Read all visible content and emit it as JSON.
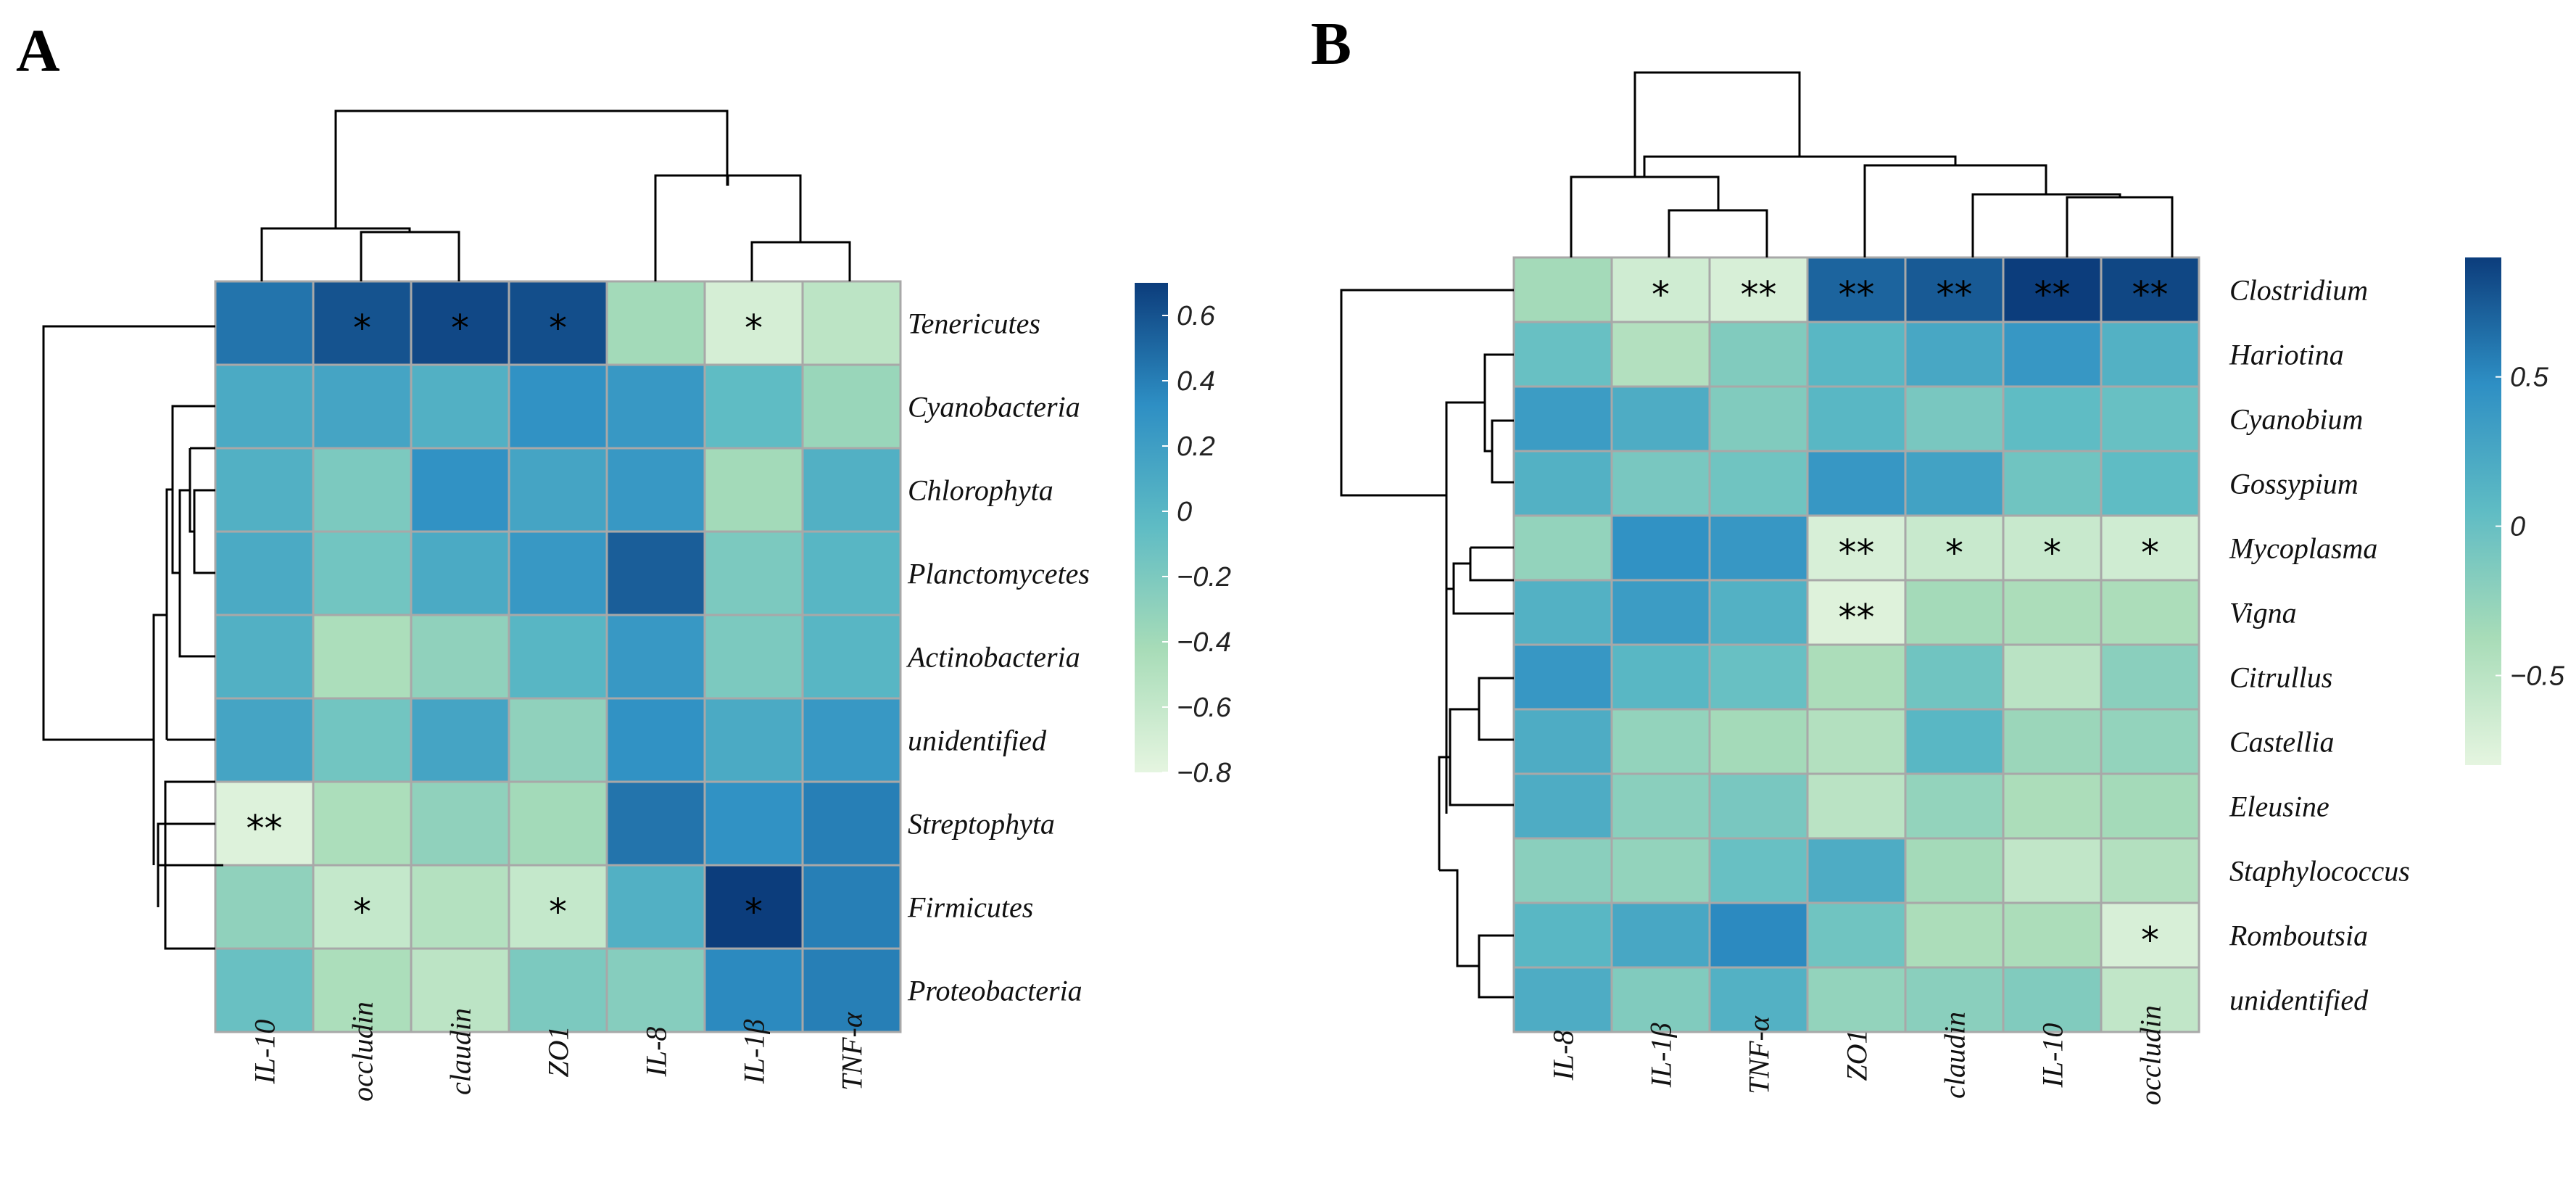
{
  "chart_data": [
    {
      "type": "heatmap",
      "panel": "A",
      "columns": [
        "IL-10",
        "occludin",
        "claudin",
        "ZO1",
        "IL-8",
        "IL-1β",
        "TNF-α"
      ],
      "rows": [
        "Tenericutes",
        "Cyanobacteria",
        "Chlorophyta",
        "Planctomycetes",
        "Actinobacteria",
        "unidentified",
        "Streptophyta",
        "Firmicutes",
        "Proteobacteria"
      ],
      "values": [
        [
          0.45,
          0.6,
          0.65,
          0.62,
          -0.4,
          -0.7,
          -0.55
        ],
        [
          0.1,
          0.15,
          0.05,
          0.3,
          0.25,
          -0.05,
          -0.35
        ],
        [
          0.05,
          -0.2,
          0.3,
          0.15,
          0.25,
          -0.4,
          0.05
        ],
        [
          0.1,
          -0.15,
          0.1,
          0.25,
          0.55,
          -0.2,
          0.0
        ],
        [
          0.05,
          -0.45,
          -0.3,
          0.0,
          0.25,
          -0.2,
          0.0
        ],
        [
          0.15,
          -0.15,
          0.15,
          -0.3,
          0.3,
          0.1,
          0.25
        ],
        [
          -0.75,
          -0.45,
          -0.3,
          -0.4,
          0.45,
          0.3,
          0.4
        ],
        [
          -0.3,
          -0.6,
          -0.5,
          -0.6,
          0.05,
          0.75,
          0.4
        ],
        [
          -0.1,
          -0.45,
          -0.55,
          -0.2,
          -0.25,
          0.35,
          0.4
        ]
      ],
      "significance": [
        [
          "",
          "*",
          "*",
          "*",
          "",
          "*",
          ""
        ],
        [
          "",
          "",
          "",
          "",
          "",
          "",
          ""
        ],
        [
          "",
          "",
          "",
          "",
          "",
          "",
          ""
        ],
        [
          "",
          "",
          "",
          "",
          "",
          "",
          ""
        ],
        [
          "",
          "",
          "",
          "",
          "",
          "",
          ""
        ],
        [
          "",
          "",
          "",
          "",
          "",
          "",
          ""
        ],
        [
          "**",
          "",
          "",
          "",
          "",
          "",
          ""
        ],
        [
          "",
          "*",
          "",
          "*",
          "",
          "*",
          ""
        ],
        [
          "",
          "",
          "",
          "",
          "",
          "",
          ""
        ]
      ],
      "colorbar": {
        "min": -0.8,
        "max": 0.7,
        "ticks": [
          0.6,
          0.4,
          0.2,
          0,
          -0.2,
          -0.4,
          -0.6,
          -0.8
        ],
        "tick_labels": [
          "0.6",
          "0.4",
          "0.2",
          "0",
          "−0.2",
          "−0.4",
          "−0.6",
          "−0.8"
        ]
      }
    },
    {
      "type": "heatmap",
      "panel": "B",
      "columns": [
        "IL-8",
        "IL-1β",
        "TNF-α",
        "ZO1",
        "claudin",
        "IL-10",
        "occludin"
      ],
      "rows": [
        "Clostridium",
        "Hariotina",
        "Cyanobium",
        "Gossypium",
        "Mycoplasma",
        "Vigna",
        "Citrullus",
        "Castellia",
        "Eleusine",
        "Staphylococcus",
        "Romboutsia",
        "unidentified"
      ],
      "values": [
        [
          -0.35,
          -0.65,
          -0.7,
          0.7,
          0.75,
          0.9,
          0.85
        ],
        [
          0.0,
          -0.45,
          -0.15,
          0.1,
          0.25,
          0.4,
          0.15
        ],
        [
          0.35,
          0.2,
          -0.15,
          0.1,
          -0.1,
          0.05,
          0.0
        ],
        [
          0.15,
          -0.1,
          -0.05,
          0.4,
          0.3,
          -0.05,
          0.05
        ],
        [
          -0.25,
          0.45,
          0.4,
          -0.7,
          -0.6,
          -0.6,
          -0.65
        ],
        [
          0.15,
          0.35,
          0.15,
          -0.75,
          -0.35,
          -0.4,
          -0.4
        ],
        [
          0.4,
          0.1,
          0.0,
          -0.4,
          -0.05,
          -0.5,
          -0.2
        ],
        [
          0.2,
          -0.25,
          -0.35,
          -0.45,
          0.1,
          -0.3,
          -0.25
        ],
        [
          0.2,
          -0.2,
          -0.1,
          -0.5,
          -0.25,
          -0.4,
          -0.35
        ],
        [
          -0.2,
          -0.25,
          0.0,
          0.2,
          -0.35,
          -0.55,
          -0.45
        ],
        [
          0.1,
          0.25,
          0.5,
          -0.05,
          -0.4,
          -0.4,
          -0.7
        ],
        [
          0.2,
          -0.15,
          0.15,
          -0.25,
          -0.2,
          -0.15,
          -0.55
        ]
      ],
      "significance": [
        [
          "",
          "*",
          "**",
          "**",
          "**",
          "**",
          "**"
        ],
        [
          "",
          "",
          "",
          "",
          "",
          "",
          ""
        ],
        [
          "",
          "",
          "",
          "",
          "",
          "",
          ""
        ],
        [
          "",
          "",
          "",
          "",
          "",
          "",
          ""
        ],
        [
          "",
          "",
          "",
          "**",
          "*",
          "*",
          "*"
        ],
        [
          "",
          "",
          "",
          "**",
          "",
          "",
          ""
        ],
        [
          "",
          "",
          "",
          "",
          "",
          "",
          ""
        ],
        [
          "",
          "",
          "",
          "",
          "",
          "",
          ""
        ],
        [
          "",
          "",
          "",
          "",
          "",
          "",
          ""
        ],
        [
          "",
          "",
          "",
          "",
          "",
          "",
          ""
        ],
        [
          "",
          "",
          "",
          "",
          "",
          "",
          "*"
        ],
        [
          "",
          "",
          "",
          "",
          "",
          "",
          ""
        ]
      ],
      "colorbar": {
        "min": -0.8,
        "max": 0.9,
        "ticks": [
          0.5,
          0,
          -0.5
        ],
        "tick_labels": [
          "0.5",
          "0",
          "−0.5"
        ]
      }
    }
  ],
  "palette": [
    "#e5f5e0",
    "#a8dcb8",
    "#5fbcc4",
    "#2e8fc4",
    "#0c3d7c"
  ]
}
